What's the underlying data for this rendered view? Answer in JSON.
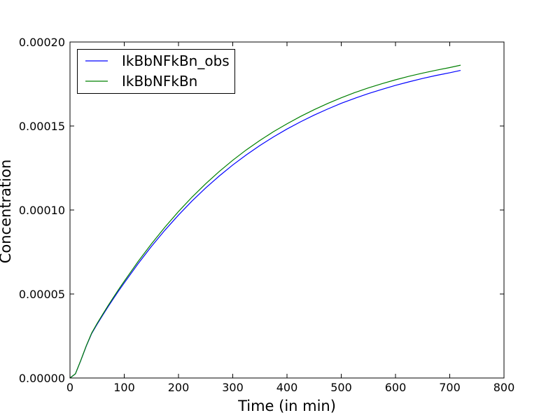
{
  "chart_data": {
    "type": "line",
    "title": "",
    "xlabel": "Time (in min)",
    "ylabel": "Concentration",
    "xlim": [
      0,
      800
    ],
    "ylim": [
      0,
      0.0002
    ],
    "x_ticks": [
      0,
      100,
      200,
      300,
      400,
      500,
      600,
      700,
      800
    ],
    "x_tick_labels": [
      "0",
      "100",
      "200",
      "300",
      "400",
      "500",
      "600",
      "700",
      "800"
    ],
    "y_ticks": [
      0,
      5e-05,
      0.0001,
      0.00015,
      0.0002
    ],
    "y_tick_labels": [
      "0.00000",
      "0.00005",
      "0.00010",
      "0.00015",
      "0.00020"
    ],
    "grid": false,
    "legend_position": "top-left",
    "x": [
      0,
      10,
      20,
      30,
      40,
      50,
      60,
      70,
      80,
      90,
      100,
      125,
      150,
      175,
      200,
      225,
      250,
      275,
      300,
      325,
      350,
      375,
      400,
      425,
      450,
      475,
      500,
      525,
      550,
      575,
      600,
      625,
      650,
      675,
      700,
      720
    ],
    "series": [
      {
        "name": "IkBbNFkBn_obs",
        "color": "#0000ff",
        "values": [
          0,
          2.5e-06,
          1.05e-05,
          1.9e-05,
          2.65e-05,
          3.2e-05,
          3.72e-05,
          4.23e-05,
          4.72e-05,
          5.2e-05,
          5.66e-05,
          6.78e-05,
          7.83e-05,
          8.8e-05,
          9.7e-05,
          0.0001054,
          0.0001131,
          0.0001202,
          0.0001268,
          0.0001328,
          0.0001384,
          0.0001435,
          0.0001482,
          0.0001525,
          0.0001565,
          0.0001601,
          0.0001635,
          0.0001665,
          0.0001693,
          0.0001718,
          0.0001742,
          0.0001763,
          0.0001783,
          0.0001801,
          0.0001817,
          0.0001831
        ]
      },
      {
        "name": "IkBbNFkBn",
        "color": "#008000",
        "values": [
          0,
          2.5e-06,
          1.06e-05,
          1.92e-05,
          2.68e-05,
          3.25e-05,
          3.78e-05,
          4.3e-05,
          4.8e-05,
          5.29e-05,
          5.76e-05,
          6.91e-05,
          7.98e-05,
          8.98e-05,
          9.91e-05,
          0.0001077,
          0.0001156,
          0.0001229,
          0.0001296,
          0.0001358,
          0.0001414,
          0.0001466,
          0.0001513,
          0.0001557,
          0.0001597,
          0.0001634,
          0.0001668,
          0.0001699,
          0.0001727,
          0.0001752,
          0.0001775,
          0.0001796,
          0.0001815,
          0.0001832,
          0.0001848,
          0.0001862
        ]
      }
    ]
  }
}
